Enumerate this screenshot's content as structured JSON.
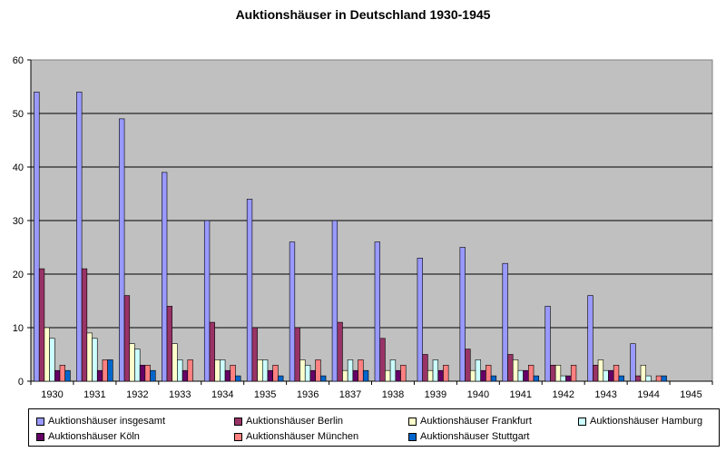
{
  "chart_data": {
    "type": "bar",
    "title": "Auktionshäuser in Deutschland 1930-1945",
    "xlabel": "",
    "ylabel": "",
    "ylim": [
      0,
      60
    ],
    "yticks": [
      0,
      10,
      20,
      30,
      40,
      50,
      60
    ],
    "grid": true,
    "legend": "bottom",
    "plot_background": "#c0c0c0",
    "categories": [
      "1930",
      "1931",
      "1932",
      "1933",
      "1934",
      "1935",
      "1936",
      "1837",
      "1938",
      "1939",
      "1940",
      "1941",
      "1942",
      "1943",
      "1944",
      "1945"
    ],
    "series": [
      {
        "name": "Auktionshäuser insgesamt",
        "color": "#9999ff",
        "values": [
          54,
          54,
          49,
          39,
          30,
          34,
          26,
          30,
          26,
          23,
          25,
          22,
          14,
          16,
          7,
          0
        ]
      },
      {
        "name": "Auktionshäuser Berlin",
        "color": "#993366",
        "values": [
          21,
          21,
          16,
          14,
          11,
          10,
          10,
          11,
          8,
          5,
          6,
          5,
          3,
          3,
          1,
          0
        ]
      },
      {
        "name": "Auktionshäuser Frankfurt",
        "color": "#ffffcc",
        "values": [
          10,
          9,
          7,
          7,
          4,
          4,
          4,
          2,
          2,
          2,
          2,
          4,
          3,
          4,
          3,
          0
        ]
      },
      {
        "name": "Auktionshäuser Hamburg",
        "color": "#ccffff",
        "values": [
          8,
          8,
          6,
          4,
          4,
          4,
          3,
          4,
          4,
          4,
          4,
          2,
          1,
          2,
          1,
          0
        ]
      },
      {
        "name": "Auktionshäuser Köln",
        "color": "#660066",
        "values": [
          2,
          2,
          3,
          2,
          2,
          2,
          2,
          2,
          2,
          2,
          2,
          2,
          1,
          2,
          0,
          0
        ]
      },
      {
        "name": "Auktionshäuser München",
        "color": "#ff8080",
        "values": [
          3,
          4,
          3,
          4,
          3,
          3,
          4,
          4,
          3,
          3,
          3,
          3,
          3,
          3,
          1,
          0
        ]
      },
      {
        "name": "Auktionshäuser Stuttgart",
        "color": "#0066cc",
        "values": [
          2,
          4,
          2,
          0,
          1,
          1,
          1,
          2,
          0,
          0,
          1,
          1,
          0,
          1,
          1,
          0
        ]
      }
    ]
  }
}
